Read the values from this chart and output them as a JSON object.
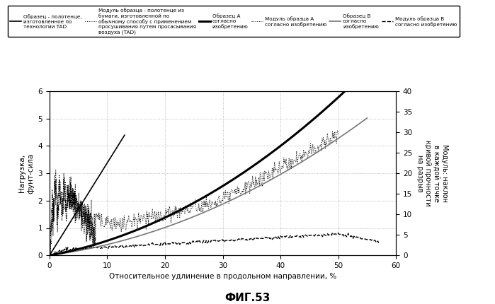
{
  "title": "ФИГ.53",
  "xlabel": "Относительное удлинение в продольном направлении, %",
  "ylabel_left": "Нагрузка,\nфунт-сила",
  "ylabel_right": "Модуль: наклон\nв каждой точке\nкривой прочности\nна разрыв",
  "xlim": [
    0,
    60
  ],
  "ylim_left": [
    0,
    6
  ],
  "ylim_right": [
    0,
    40
  ],
  "legend_labels": [
    "Образец - полотенце,\nизготовленное по\nтехнологии TAD",
    "Модуль образца - полотенце из\nбумаги, изготовленной по\nобычному способу с применением\nпросушивания путем просасывания\nвоздуха (TAD)",
    "Образец А\nсогласно\nизобретению",
    "Модуль образца А\nсогласно изобретению",
    "Образец В\nсогласно\nизобретению",
    "Модуль образца В\nсогласно изобретению"
  ],
  "background_color": "#ffffff"
}
